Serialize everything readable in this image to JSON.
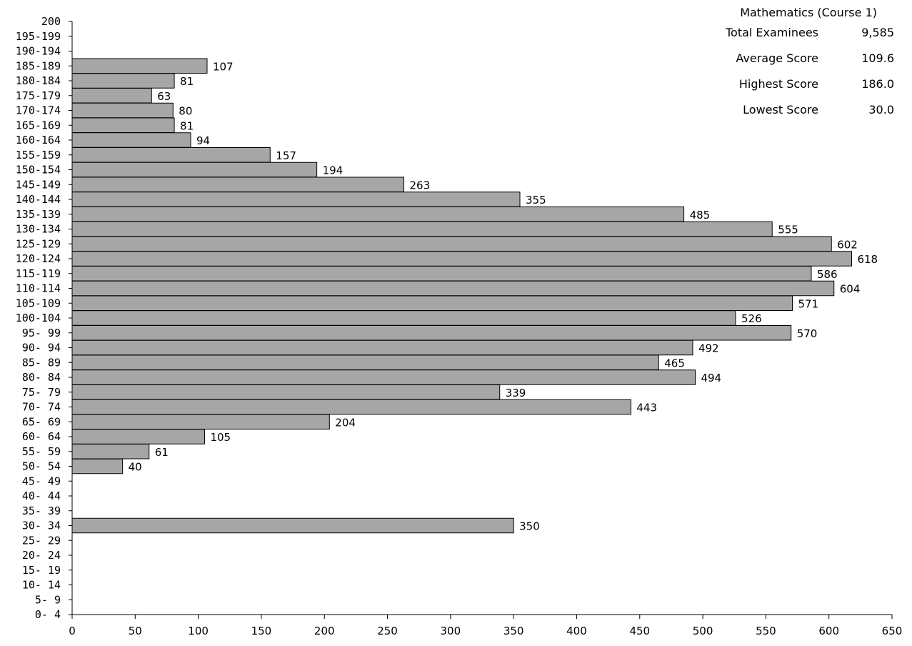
{
  "summary": {
    "title": "Mathematics (Course 1)",
    "rows": [
      {
        "label": "Total Examinees",
        "value": "9,585"
      },
      {
        "label": "Average Score",
        "value": "109.6"
      },
      {
        "label": "Highest Score",
        "value": "186.0"
      },
      {
        "label": "Lowest Score",
        "value": "30.0"
      }
    ]
  },
  "chart_data": {
    "type": "bar",
    "orientation": "horizontal",
    "title": "",
    "xlabel": "",
    "ylabel": "",
    "xlim": [
      0,
      650
    ],
    "x_ticks": [
      0,
      50,
      100,
      150,
      200,
      250,
      300,
      350,
      400,
      450,
      500,
      550,
      600,
      650
    ],
    "grid": false,
    "bar_color": "#a6a6a6",
    "categories": [
      "200",
      "195-199",
      "190-194",
      "185-189",
      "180-184",
      "175-179",
      "170-174",
      "165-169",
      "160-164",
      "155-159",
      "150-154",
      "145-149",
      "140-144",
      "135-139",
      "130-134",
      "125-129",
      "120-124",
      "115-119",
      "110-114",
      "105-109",
      "100-104",
      "95- 99",
      "90- 94",
      "85- 89",
      "80- 84",
      "75- 79",
      "70- 74",
      "65- 69",
      "60- 64",
      "55- 59",
      "50- 54",
      "45- 49",
      "40- 44",
      "35- 39",
      "30- 34",
      "25- 29",
      "20- 24",
      "15- 19",
      "10- 14",
      "5- 9",
      "0- 4"
    ],
    "values": [
      0,
      0,
      0,
      107,
      81,
      63,
      80,
      81,
      94,
      157,
      194,
      263,
      355,
      485,
      555,
      602,
      618,
      586,
      604,
      571,
      526,
      570,
      492,
      465,
      494,
      339,
      443,
      204,
      105,
      61,
      40,
      0,
      0,
      0,
      350,
      0,
      0,
      0,
      0,
      0,
      0
    ]
  }
}
